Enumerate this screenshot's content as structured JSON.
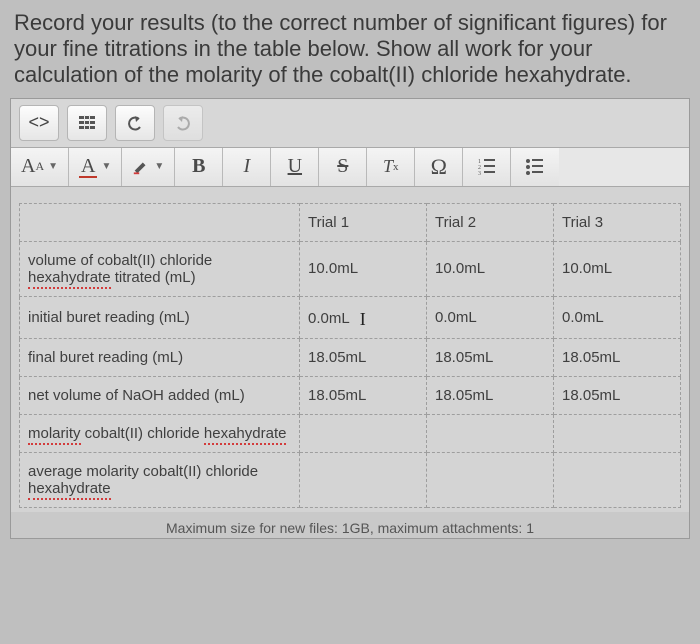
{
  "instructions": "Record your results (to the correct number of significant figures) for your fine titrations in the table below. Show all work for your calculation of the molarity of the cobalt(II) chloride hexahydrate.",
  "toolbar": {
    "code_label": "<>",
    "font_size_label": "Aᴀ",
    "font_color_label": "A",
    "bold": "B",
    "italic": "I",
    "underline": "U",
    "strike": "S",
    "clearfmt": "T",
    "omega": "Ω"
  },
  "table": {
    "headers": [
      "",
      "Trial 1",
      "Trial 2",
      "Trial 3"
    ],
    "rows": [
      {
        "label_parts": [
          "volume of cobalt(II) chloride ",
          {
            "err": "hexahydrate"
          },
          " titrated (mL)"
        ],
        "cells": [
          "10.0mL",
          "10.0mL",
          "10.0mL"
        ]
      },
      {
        "label_parts": [
          "initial buret reading (mL)"
        ],
        "cells": [
          "0.0mL",
          "0.0mL",
          "0.0mL"
        ],
        "cursor_after_col": 0
      },
      {
        "label_parts": [
          "final buret reading (mL)"
        ],
        "cells": [
          "18.05mL",
          "18.05mL",
          "18.05mL"
        ]
      },
      {
        "label_parts": [
          "net volume of NaOH added (mL)"
        ],
        "cells": [
          "18.05mL",
          "18.05mL",
          "18.05mL"
        ]
      },
      {
        "label_parts": [
          {
            "err": "molarity"
          },
          " cobalt(II) chloride ",
          {
            "err": "hexahydrate"
          }
        ],
        "cells": [
          "",
          "",
          ""
        ]
      },
      {
        "label_parts": [
          "average molarity cobalt(II) chloride ",
          {
            "err": "hexahydrate"
          }
        ],
        "cells": [
          "",
          "",
          ""
        ]
      }
    ]
  },
  "footer": "Maximum size for new files: 1GB, maximum attachments: 1"
}
